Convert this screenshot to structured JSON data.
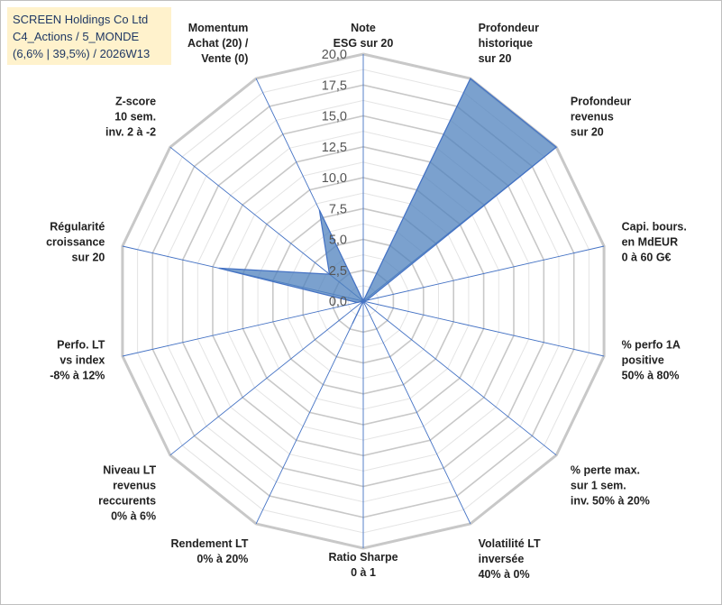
{
  "title": {
    "line1": "SCREEN Holdings Co Ltd",
    "line2": "C4_Actions / 5_MONDE",
    "line3": "(6,6% | 39,5%) / 2026W13"
  },
  "colors": {
    "fill": "#4f81bd",
    "stroke": "#4472c4",
    "grid": "#bfbfbf",
    "title_bg": "#fff2cc"
  },
  "chart_data": {
    "type": "radar",
    "rmin": 0,
    "rmax": 20,
    "ticks": [
      "0,0",
      "2,5",
      "5,0",
      "7,5",
      "10,0",
      "12,5",
      "15,0",
      "17,5",
      "20,0"
    ],
    "axes": [
      {
        "label": [
          "Note",
          "ESG sur 20"
        ],
        "value": 0
      },
      {
        "label": [
          "Profondeur",
          "historique",
          "sur 20"
        ],
        "value": 20
      },
      {
        "label": [
          "Profondeur",
          "revenus",
          "sur 20"
        ],
        "value": 20
      },
      {
        "label": [
          "Capi. bours.",
          "en MdEUR",
          "0 à 60 G€"
        ],
        "value": 0.3
      },
      {
        "label": [
          "% perfo 1A",
          "positive",
          "50% à 80%"
        ],
        "value": 0
      },
      {
        "label": [
          "% perte max.",
          "sur 1 sem.",
          "inv. 50% à 20%"
        ],
        "value": 0
      },
      {
        "label": [
          "Volatilité LT",
          "inversée",
          "40% à 0%"
        ],
        "value": 0
      },
      {
        "label": [
          "Ratio Sharpe",
          "0 à 1"
        ],
        "value": 0
      },
      {
        "label": [
          "Rendement LT",
          "0% à 20%"
        ],
        "value": 2.0
      },
      {
        "label": [
          "Niveau LT",
          "revenus",
          "reccurents",
          "0% à 6%"
        ],
        "value": 0
      },
      {
        "label": [
          "Perfo. LT",
          "vs index",
          "-8% à 12%"
        ],
        "value": 0.5
      },
      {
        "label": [
          "Régularité",
          "croissance",
          "sur 20"
        ],
        "value": 12
      },
      {
        "label": [
          "Z-score",
          "10 sem.",
          "inv. 2 à -2"
        ],
        "value": 3.5
      },
      {
        "label": [
          "Momentum",
          "Achat (20) /",
          "Vente (0)"
        ],
        "value": 8.2
      }
    ]
  }
}
